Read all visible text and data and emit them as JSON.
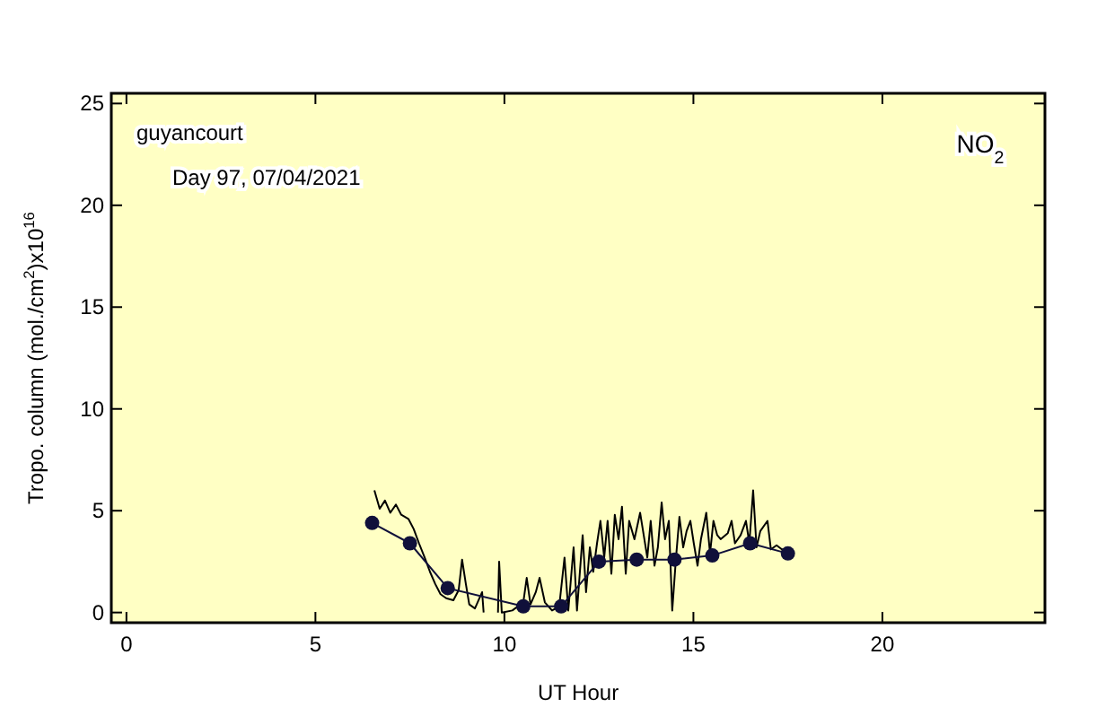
{
  "chart_data": {
    "type": "line",
    "xlabel": "UT Hour",
    "ylabel": "Tropo. column (mol./cm$^{2}$)x10$^{16}$",
    "annotations": [
      "guyancourt",
      "Day 97, 07/04/2021",
      "NO$_{2}$"
    ],
    "xlim": [
      -0.4,
      24.3
    ],
    "ylim": [
      -0.5,
      25.5
    ],
    "xticks": [
      0,
      5,
      10,
      15,
      20
    ],
    "yticks": [
      0,
      5,
      10,
      15,
      20,
      25
    ],
    "grid": false,
    "series": [
      {
        "color": "#000000",
        "marker": "none",
        "x": [
          6.56,
          6.7,
          6.84,
          6.98,
          7.13,
          7.27,
          7.46,
          7.6,
          7.74,
          7.89,
          8.03,
          8.17,
          8.31,
          8.46,
          8.65,
          8.79,
          8.88,
          8.98,
          9.07,
          9.22,
          9.41,
          9.45,
          9.6,
          9.83,
          9.86,
          9.93,
          10.21,
          10.5,
          10.59,
          10.69,
          10.83,
          10.93,
          11.07,
          11.26,
          11.45,
          11.59,
          11.69,
          11.83,
          11.92,
          12.07,
          12.16,
          12.26,
          12.35,
          12.45,
          12.54,
          12.64,
          12.73,
          12.83,
          12.92,
          13.02,
          13.11,
          13.21,
          13.3,
          13.44,
          13.59,
          13.78,
          13.87,
          13.97,
          14.06,
          14.16,
          14.25,
          14.35,
          14.44,
          14.54,
          14.63,
          14.73,
          14.82,
          14.92,
          15.01,
          15.11,
          15.2,
          15.34,
          15.44,
          15.53,
          15.63,
          15.72,
          15.91,
          16.01,
          16.1,
          16.25,
          16.39,
          16.48,
          16.58,
          16.67,
          16.77,
          16.96,
          17.05,
          17.2,
          17.34,
          17.43,
          17.53
        ],
        "values": [
          6.0,
          5.1,
          5.5,
          4.9,
          5.3,
          4.8,
          4.6,
          4.1,
          3.4,
          2.7,
          2.0,
          1.4,
          0.9,
          0.7,
          0.6,
          1.1,
          2.6,
          1.4,
          0.4,
          0.2,
          1.0,
          0.0,
          null,
          0.0,
          2.5,
          0.0,
          0.1,
          0.5,
          1.7,
          0.4,
          1.0,
          1.7,
          0.5,
          0.1,
          0.3,
          2.7,
          0.1,
          3.2,
          0.1,
          3.8,
          1.0,
          3.2,
          2.0,
          3.4,
          4.5,
          2.7,
          4.5,
          1.9,
          4.8,
          3.6,
          5.2,
          1.9,
          4.5,
          3.6,
          4.9,
          2.7,
          4.5,
          2.3,
          3.2,
          5.4,
          3.6,
          4.5,
          0.1,
          2.7,
          4.7,
          3.2,
          4.0,
          4.5,
          3.4,
          2.3,
          3.6,
          4.9,
          2.9,
          4.5,
          3.8,
          3.6,
          3.9,
          4.5,
          3.4,
          3.8,
          4.5,
          3.4,
          6.0,
          3.2,
          4.0,
          4.5,
          3.1,
          3.3,
          3.1,
          3.1,
          2.8
        ]
      },
      {
        "color": "#10103a",
        "marker": "circle",
        "x": [
          6.5,
          7.5,
          8.5,
          10.5,
          11.5,
          12.5,
          13.5,
          14.5,
          15.5,
          16.5,
          17.5
        ],
        "values": [
          4.4,
          3.4,
          1.2,
          0.3,
          0.3,
          2.5,
          2.6,
          2.6,
          2.8,
          3.4,
          2.9
        ]
      }
    ]
  }
}
